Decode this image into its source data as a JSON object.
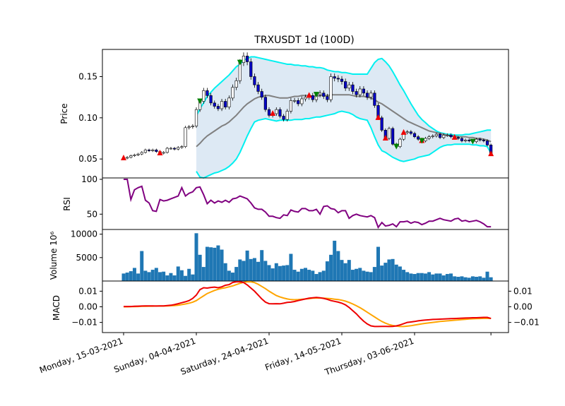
{
  "chart_data": {
    "type": "candlestick",
    "title": "TRXUSDT 1d (100D)",
    "n_days": 102,
    "x_ticks": [
      {
        "label": "Monday, 15-03-2021",
        "index": 0
      },
      {
        "label": "Sunday, 04-04-2021",
        "index": 20
      },
      {
        "label": "Saturday, 24-04-2021",
        "index": 40
      },
      {
        "label": "Friday, 14-05-2021",
        "index": 60
      },
      {
        "label": "Thursday, 03-06-2021",
        "index": 80
      }
    ],
    "price_panel": {
      "ylabel": "Price",
      "ylim": [
        0.027,
        0.183
      ],
      "yticks": [
        "0.05",
        "0.10",
        "0.15"
      ],
      "close": [
        0.051,
        0.052,
        0.054,
        0.055,
        0.056,
        0.058,
        0.061,
        0.06,
        0.061,
        0.059,
        0.057,
        0.058,
        0.063,
        0.063,
        0.062,
        0.064,
        0.065,
        0.088,
        0.089,
        0.09,
        0.11,
        0.12,
        0.133,
        0.127,
        0.118,
        0.114,
        0.111,
        0.12,
        0.113,
        0.124,
        0.137,
        0.145,
        0.167,
        0.175,
        0.168,
        0.15,
        0.14,
        0.132,
        0.125,
        0.11,
        0.103,
        0.105,
        0.11,
        0.102,
        0.098,
        0.108,
        0.121,
        0.121,
        0.117,
        0.123,
        0.125,
        0.127,
        0.122,
        0.128,
        0.13,
        0.126,
        0.122,
        0.15,
        0.148,
        0.147,
        0.144,
        0.136,
        0.14,
        0.132,
        0.128,
        0.135,
        0.13,
        0.125,
        0.13,
        0.115,
        0.1,
        0.085,
        0.075,
        0.087,
        0.068,
        0.065,
        0.074,
        0.082,
        0.083,
        0.081,
        0.077,
        0.074,
        0.072,
        0.075,
        0.077,
        0.078,
        0.08,
        0.076,
        0.079,
        0.079,
        0.077,
        0.076,
        0.075,
        0.072,
        0.073,
        0.072,
        0.071,
        0.074,
        0.073,
        0.072,
        0.067,
        0.056
      ],
      "middle_band": [
        null,
        null,
        null,
        null,
        null,
        null,
        null,
        null,
        null,
        null,
        null,
        null,
        null,
        null,
        null,
        null,
        null,
        null,
        null,
        null,
        0.065,
        0.069,
        0.074,
        0.078,
        0.081,
        0.084,
        0.087,
        0.09,
        0.092,
        0.095,
        0.099,
        0.103,
        0.108,
        0.113,
        0.117,
        0.12,
        0.123,
        0.125,
        0.126,
        0.127,
        0.127,
        0.126,
        0.125,
        0.124,
        0.124,
        0.124,
        0.125,
        0.126,
        0.126,
        0.127,
        0.127,
        0.127,
        0.126,
        0.126,
        0.127,
        0.127,
        0.127,
        0.128,
        0.128,
        0.128,
        0.128,
        0.128,
        0.128,
        0.127,
        0.126,
        0.126,
        0.126,
        0.125,
        0.124,
        0.122,
        0.119,
        0.117,
        0.114,
        0.111,
        0.108,
        0.105,
        0.102,
        0.099,
        0.096,
        0.094,
        0.092,
        0.09,
        0.088,
        0.086,
        0.084,
        0.083,
        0.082,
        0.081,
        0.08,
        0.079,
        0.078,
        0.078,
        0.077,
        0.077,
        0.077,
        0.076,
        0.076,
        0.075,
        0.075,
        0.074,
        0.073,
        0.071
      ],
      "upper_band": [
        null,
        null,
        null,
        null,
        null,
        null,
        null,
        null,
        null,
        null,
        null,
        null,
        null,
        null,
        null,
        null,
        null,
        null,
        null,
        null,
        0.102,
        0.111,
        0.118,
        0.126,
        0.131,
        0.136,
        0.14,
        0.144,
        0.148,
        0.152,
        0.157,
        0.162,
        0.165,
        0.17,
        0.172,
        0.174,
        0.174,
        0.173,
        0.172,
        0.171,
        0.17,
        0.169,
        0.168,
        0.167,
        0.166,
        0.165,
        0.165,
        0.164,
        0.164,
        0.163,
        0.163,
        0.162,
        0.162,
        0.161,
        0.161,
        0.16,
        0.158,
        0.157,
        0.156,
        0.156,
        0.155,
        0.155,
        0.154,
        0.153,
        0.153,
        0.153,
        0.153,
        0.153,
        0.16,
        0.167,
        0.171,
        0.172,
        0.168,
        0.163,
        0.156,
        0.148,
        0.14,
        0.133,
        0.125,
        0.117,
        0.11,
        0.103,
        0.098,
        0.094,
        0.09,
        0.087,
        0.084,
        0.082,
        0.081,
        0.08,
        0.08,
        0.079,
        0.079,
        0.079,
        0.08,
        0.08,
        0.081,
        0.082,
        0.083,
        0.084,
        0.085,
        0.085
      ],
      "lower_band": [
        null,
        null,
        null,
        null,
        null,
        null,
        null,
        null,
        null,
        null,
        null,
        null,
        null,
        null,
        null,
        null,
        null,
        null,
        null,
        null,
        0.035,
        0.028,
        0.027,
        0.029,
        0.031,
        0.033,
        0.034,
        0.036,
        0.038,
        0.041,
        0.045,
        0.05,
        0.058,
        0.068,
        0.078,
        0.087,
        0.095,
        0.097,
        0.098,
        0.099,
        0.098,
        0.097,
        0.096,
        0.097,
        0.097,
        0.097,
        0.097,
        0.098,
        0.098,
        0.098,
        0.099,
        0.099,
        0.1,
        0.101,
        0.101,
        0.102,
        0.103,
        0.104,
        0.105,
        0.107,
        0.108,
        0.107,
        0.106,
        0.104,
        0.101,
        0.099,
        0.098,
        0.097,
        0.088,
        0.077,
        0.067,
        0.06,
        0.058,
        0.055,
        0.052,
        0.05,
        0.048,
        0.047,
        0.048,
        0.049,
        0.05,
        0.052,
        0.053,
        0.054,
        0.055,
        0.058,
        0.061,
        0.064,
        0.066,
        0.067,
        0.067,
        0.068,
        0.068,
        0.068,
        0.068,
        0.068,
        0.067,
        0.067,
        0.066,
        0.066,
        0.065,
        0.057
      ],
      "buy_markers": [
        0,
        10,
        41,
        51,
        70,
        72,
        77,
        82,
        91,
        101
      ],
      "sell_markers": [
        21,
        32,
        53,
        75,
        82,
        96
      ]
    },
    "rsi_panel": {
      "ylabel": "RSI",
      "ylim": [
        28,
        102
      ],
      "yticks": [
        "50",
        "100"
      ],
      "values": [
        100,
        100,
        71,
        85,
        88,
        90,
        70,
        66,
        55,
        54,
        71,
        69,
        70,
        72,
        74,
        76,
        88,
        76,
        80,
        82,
        88,
        89,
        78,
        65,
        70,
        66,
        69,
        67,
        70,
        67,
        72,
        73,
        76,
        74,
        72,
        66,
        59,
        57,
        57,
        53,
        47,
        47,
        45,
        44,
        49,
        48,
        56,
        54,
        53,
        58,
        58,
        55,
        55,
        57,
        50,
        61,
        62,
        58,
        57,
        52,
        55,
        55,
        44,
        48,
        50,
        48,
        47,
        46,
        48,
        45,
        31,
        38,
        33,
        34,
        36,
        32,
        39,
        39,
        40,
        37,
        39,
        38,
        35,
        37,
        40,
        40,
        42,
        44,
        42,
        41,
        40,
        43,
        44,
        40,
        41,
        39,
        40,
        41,
        39,
        36,
        32,
        32
      ]
    },
    "volume_panel": {
      "ylabel": "Volume  10⁶",
      "ylim": [
        0,
        11000
      ],
      "yticks": [
        "5000",
        "10000"
      ],
      "values": [
        1600,
        1800,
        2100,
        2800,
        1600,
        6400,
        2200,
        1900,
        2400,
        2800,
        1900,
        2000,
        1200,
        1700,
        1200,
        3100,
        2300,
        1100,
        2600,
        1400,
        10200,
        5600,
        3000,
        7300,
        7200,
        7100,
        7600,
        6700,
        3800,
        2200,
        1800,
        3000,
        4600,
        4300,
        6500,
        4700,
        4900,
        4100,
        6600,
        4300,
        3400,
        2700,
        3800,
        3200,
        3300,
        3400,
        5800,
        2400,
        2000,
        2600,
        2800,
        2400,
        2200,
        1500,
        1900,
        2200,
        4200,
        5600,
        8600,
        6400,
        4500,
        3800,
        4500,
        2400,
        2600,
        2800,
        2200,
        2000,
        1900,
        3000,
        7300,
        3300,
        3900,
        4600,
        4700,
        3500,
        3100,
        2400,
        1900,
        1600,
        1500,
        1700,
        1700,
        1600,
        1900,
        1400,
        1600,
        1600,
        1200,
        1500,
        1600,
        1000,
        900,
        1000,
        800,
        700,
        1000,
        900,
        1000,
        700,
        2000,
        800
      ]
    },
    "macd_panel": {
      "ylabel": "MACD",
      "ylim": [
        -0.0165,
        0.0165
      ],
      "yticks": [
        "−0.01",
        "0.00",
        "0.01"
      ],
      "macd": [
        0.0002,
        0.0002,
        0.0002,
        0.0003,
        0.0004,
        0.0005,
        0.0006,
        0.0006,
        0.0006,
        0.0005,
        0.0006,
        0.0006,
        0.0008,
        0.001,
        0.0014,
        0.002,
        0.0026,
        0.0032,
        0.004,
        0.0054,
        0.0075,
        0.011,
        0.0122,
        0.012,
        0.0124,
        0.0126,
        0.0122,
        0.0128,
        0.0138,
        0.0142,
        0.0156,
        0.016,
        0.016,
        0.0155,
        0.014,
        0.012,
        0.01,
        0.0075,
        0.005,
        0.003,
        0.002,
        0.0019,
        0.002,
        0.0019,
        0.0023,
        0.0028,
        0.003,
        0.0034,
        0.004,
        0.0045,
        0.005,
        0.0055,
        0.0058,
        0.006,
        0.0058,
        0.0054,
        0.0048,
        0.004,
        0.0035,
        0.003,
        0.0023,
        0.0012,
        -0.0004,
        -0.0025,
        -0.0045,
        -0.007,
        -0.0092,
        -0.011,
        -0.0122,
        -0.0126,
        -0.0126,
        -0.0125,
        -0.0125,
        -0.0126,
        -0.0125,
        -0.0122,
        -0.0116,
        -0.0108,
        -0.01,
        -0.0097,
        -0.0094,
        -0.009,
        -0.0087,
        -0.0085,
        -0.0083,
        -0.0081,
        -0.008,
        -0.0079,
        -0.0078,
        -0.0077,
        -0.0076,
        -0.0075,
        -0.0074,
        -0.0073,
        -0.0072,
        -0.0071,
        -0.007,
        -0.007,
        -0.0069,
        -0.0068,
        -0.0068,
        -0.0075
      ],
      "signal": [
        0.0,
        0.0,
        0.0001,
        0.0001,
        0.0002,
        0.0003,
        0.0003,
        0.0004,
        0.0004,
        0.0005,
        0.0005,
        0.0005,
        0.0006,
        0.0007,
        0.0008,
        0.001,
        0.0014,
        0.0018,
        0.0023,
        0.003,
        0.004,
        0.0055,
        0.007,
        0.0085,
        0.0095,
        0.0105,
        0.0112,
        0.0118,
        0.0122,
        0.0128,
        0.0134,
        0.0142,
        0.015,
        0.0157,
        0.016,
        0.016,
        0.0155,
        0.0144,
        0.013,
        0.0116,
        0.01,
        0.0086,
        0.0072,
        0.0063,
        0.0056,
        0.005,
        0.0046,
        0.0045,
        0.0046,
        0.0048,
        0.005,
        0.0052,
        0.0055,
        0.0056,
        0.0056,
        0.0055,
        0.0054,
        0.0052,
        0.0049,
        0.0046,
        0.0042,
        0.0036,
        0.0028,
        0.0018,
        0.0007,
        -0.0006,
        -0.002,
        -0.0035,
        -0.005,
        -0.0065,
        -0.008,
        -0.0094,
        -0.0105,
        -0.0114,
        -0.012,
        -0.0124,
        -0.0126,
        -0.0126,
        -0.0124,
        -0.0121,
        -0.0117,
        -0.0113,
        -0.0109,
        -0.0106,
        -0.0103,
        -0.01,
        -0.0097,
        -0.0094,
        -0.0092,
        -0.009,
        -0.0088,
        -0.0086,
        -0.0084,
        -0.0082,
        -0.008,
        -0.0078,
        -0.0077,
        -0.0076,
        -0.0075,
        -0.0074,
        -0.0074,
        -0.0074
      ]
    },
    "colors": {
      "candle_up": "#ffffff",
      "candle_down": "#0000c8",
      "band_fill": "#dde9f4",
      "band_lines": "#00f0f0",
      "middle_band": "#808080",
      "rsi": "#800080",
      "volume": "#1f77b4",
      "macd": "#ee0000",
      "signal": "#ffa500",
      "buy_marker": "#ee0000",
      "sell_marker": "#008000"
    }
  }
}
